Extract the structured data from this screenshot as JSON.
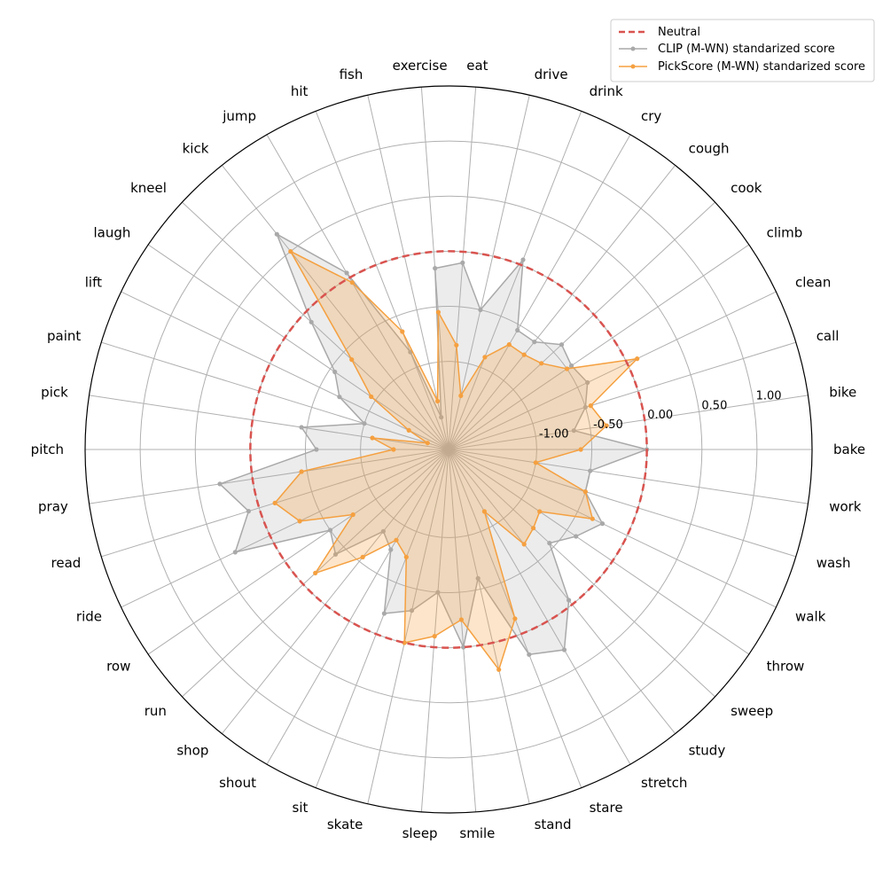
{
  "chart_data": {
    "type": "radar",
    "categories": [
      "bake",
      "bike",
      "call",
      "clean",
      "climb",
      "cook",
      "cough",
      "cry",
      "drink",
      "drive",
      "eat",
      "exercise",
      "fish",
      "hit",
      "jump",
      "kick",
      "kneel",
      "laugh",
      "lift",
      "paint",
      "pick",
      "pitch",
      "pray",
      "read",
      "ride",
      "row",
      "run",
      "shop",
      "shout",
      "sit",
      "skate",
      "sleep",
      "smile",
      "stand",
      "stare",
      "stretch",
      "study",
      "sweep",
      "throw",
      "walk",
      "wash",
      "work"
    ],
    "radial_ticks": [
      {
        "value": -1.0,
        "label": "-1.00"
      },
      {
        "value": -0.5,
        "label": "-0.50"
      },
      {
        "value": 0.0,
        "label": "0.00"
      },
      {
        "value": 0.5,
        "label": "0.50"
      },
      {
        "value": 1.0,
        "label": "1.00"
      }
    ],
    "rlim": [
      -1.8,
      1.5
    ],
    "neutral_value": 0.0,
    "series": [
      {
        "name": "CLIP (M-WN) standarized score",
        "color": "#a9a9a9",
        "values": [
          0.0,
          -0.65,
          -0.5,
          -0.4,
          -0.45,
          -0.4,
          -0.55,
          -0.55,
          0.05,
          -0.5,
          -0.1,
          -0.15,
          -1.5,
          -0.85,
          0.05,
          0.7,
          -0.1,
          -0.55,
          -0.7,
          -1.0,
          -0.45,
          -0.6,
          0.3,
          0.1,
          0.35,
          -0.5,
          -0.4,
          -0.85,
          -0.75,
          -0.2,
          -0.3,
          -0.5,
          0.0,
          -0.6,
          0.2,
          0.3,
          -0.05,
          -0.55,
          -0.4,
          -0.25,
          -0.5,
          -0.5
        ]
      },
      {
        "name": "PickScore (M-WN) standarized score",
        "color": "#f5a040",
        "values": [
          -0.6,
          -0.35,
          -0.45,
          0.1,
          -0.5,
          -0.65,
          -0.7,
          -0.7,
          -0.9,
          -1.3,
          -0.85,
          -0.55,
          -1.35,
          -0.65,
          -0.05,
          0.5,
          -0.6,
          -0.95,
          -1.4,
          -1.6,
          -1.1,
          -1.3,
          -0.45,
          -0.15,
          -0.3,
          -0.75,
          -0.15,
          -0.55,
          -0.85,
          -0.75,
          0.0,
          -0.1,
          -0.25,
          0.25,
          -0.15,
          -1.15,
          -0.7,
          -0.75,
          -0.8,
          -0.35,
          -0.5,
          -1.0
        ]
      }
    ],
    "legend": {
      "position": "top-right",
      "entries": [
        "Neutral",
        "CLIP (M-WN) standarized score",
        "PickScore (M-WN) standarized score"
      ]
    },
    "colors": {
      "neutral": "#d9534f",
      "grid": "#b0b0b0",
      "outline": "#000000"
    }
  }
}
